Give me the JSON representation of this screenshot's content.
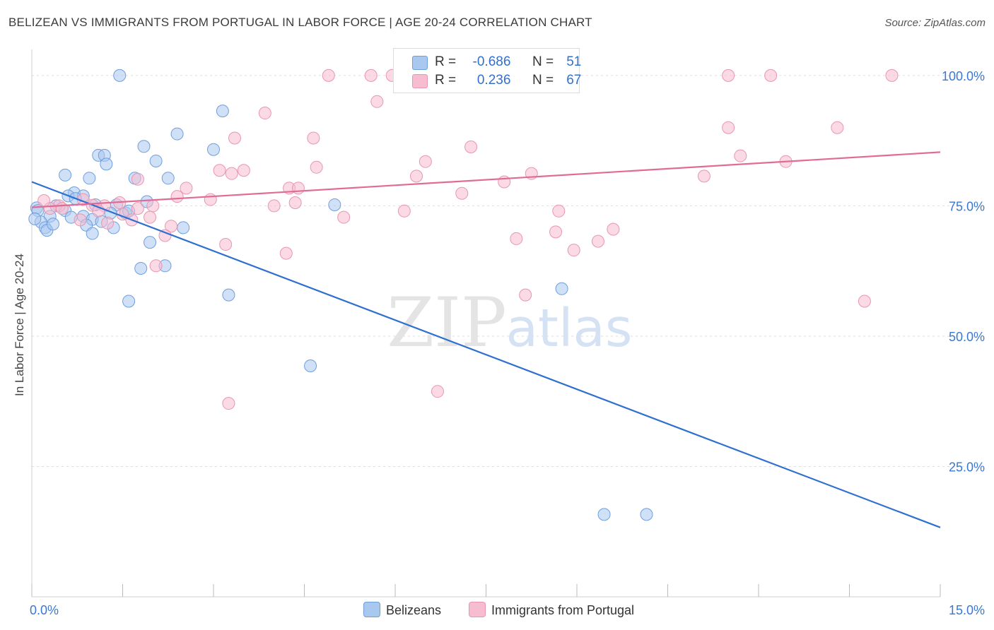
{
  "title": "BELIZEAN VS IMMIGRANTS FROM PORTUGAL IN LABOR FORCE | AGE 20-24 CORRELATION CHART",
  "source": "Source: ZipAtlas.com",
  "watermark": {
    "zip": "ZIP",
    "atlas": "atlas"
  },
  "legend": {
    "r_label": "R =",
    "n_label": "N =",
    "rows": [
      {
        "r": "-0.686",
        "n": "51",
        "color": "#a9c8f0"
      },
      {
        "r": "0.236",
        "n": "67",
        "color": "#f7bcd0"
      }
    ]
  },
  "chart_data": {
    "type": "scatter",
    "ylabel": "In Labor Force | Age 20-24",
    "xlim": [
      0,
      15
    ],
    "ylim": [
      0,
      105
    ],
    "x_tick_labels": [
      {
        "value": 0,
        "label": "0.0%"
      },
      {
        "value": 15,
        "label": "15.0%"
      }
    ],
    "y_tick_labels": [
      {
        "value": 25,
        "label": "25.0%"
      },
      {
        "value": 50,
        "label": "50.0%"
      },
      {
        "value": 75,
        "label": "75.0%"
      },
      {
        "value": 100,
        "label": "100.0%"
      }
    ],
    "grid": true,
    "legend_position": "top-center",
    "series": [
      {
        "name": "Belizeans",
        "color": "#a9c8f0",
        "stroke": "#6f9edc",
        "line_color": "#2f6fd0",
        "trend": {
          "x": [
            0,
            15
          ],
          "y": [
            79.6,
            13.3
          ]
        },
        "points": [
          [
            1.45,
            100.0
          ],
          [
            3.15,
            93.2
          ],
          [
            2.4,
            88.8
          ],
          [
            1.85,
            86.4
          ],
          [
            3.0,
            85.8
          ],
          [
            1.1,
            84.7
          ],
          [
            1.2,
            84.7
          ],
          [
            2.05,
            83.6
          ],
          [
            1.23,
            83.0
          ],
          [
            0.55,
            80.9
          ],
          [
            0.95,
            80.3
          ],
          [
            1.7,
            80.3
          ],
          [
            2.25,
            80.3
          ],
          [
            0.7,
            77.5
          ],
          [
            0.6,
            76.9
          ],
          [
            0.85,
            76.9
          ],
          [
            0.72,
            76.4
          ],
          [
            1.9,
            75.8
          ],
          [
            1.05,
            75.2
          ],
          [
            1.4,
            75.2
          ],
          [
            5.0,
            75.2
          ],
          [
            0.08,
            74.6
          ],
          [
            0.1,
            74.1
          ],
          [
            0.55,
            74.1
          ],
          [
            1.3,
            73.6
          ],
          [
            1.55,
            73.6
          ],
          [
            0.3,
            73.0
          ],
          [
            0.85,
            73.0
          ],
          [
            1.0,
            72.4
          ],
          [
            0.15,
            71.9
          ],
          [
            0.9,
            71.3
          ],
          [
            0.22,
            70.8
          ],
          [
            1.35,
            70.8
          ],
          [
            2.5,
            70.8
          ],
          [
            0.25,
            70.3
          ],
          [
            1.0,
            69.7
          ],
          [
            1.95,
            68.0
          ],
          [
            2.2,
            63.5
          ],
          [
            1.8,
            63.0
          ],
          [
            8.75,
            59.1
          ],
          [
            3.25,
            57.9
          ],
          [
            1.6,
            56.7
          ],
          [
            4.6,
            44.3
          ],
          [
            9.45,
            15.8
          ],
          [
            10.15,
            15.8
          ],
          [
            0.05,
            72.5
          ],
          [
            0.4,
            75.0
          ],
          [
            1.15,
            72.0
          ],
          [
            0.35,
            71.5
          ],
          [
            1.6,
            74.0
          ],
          [
            0.65,
            72.8
          ]
        ]
      },
      {
        "name": "Immigrants from Portugal",
        "color": "#f7bcd0",
        "stroke": "#e896b0",
        "line_color": "#e06c96",
        "trend": {
          "x": [
            0,
            15
          ],
          "y": [
            74.7,
            85.3
          ]
        },
        "points": [
          [
            4.9,
            100.0
          ],
          [
            5.6,
            100.0
          ],
          [
            5.95,
            100.0
          ],
          [
            7.0,
            100.0
          ],
          [
            11.5,
            100.0
          ],
          [
            12.2,
            100.0
          ],
          [
            14.2,
            100.0
          ],
          [
            5.7,
            95.0
          ],
          [
            3.85,
            92.8
          ],
          [
            11.5,
            90.0
          ],
          [
            13.3,
            90.0
          ],
          [
            3.35,
            88.0
          ],
          [
            4.65,
            88.0
          ],
          [
            7.25,
            86.3
          ],
          [
            11.7,
            84.6
          ],
          [
            6.5,
            83.5
          ],
          [
            12.45,
            83.5
          ],
          [
            4.7,
            82.4
          ],
          [
            3.1,
            81.8
          ],
          [
            3.5,
            81.8
          ],
          [
            3.3,
            81.2
          ],
          [
            8.25,
            81.2
          ],
          [
            6.35,
            80.7
          ],
          [
            11.1,
            80.7
          ],
          [
            1.75,
            80.1
          ],
          [
            7.8,
            79.6
          ],
          [
            2.55,
            78.4
          ],
          [
            4.25,
            78.4
          ],
          [
            4.4,
            78.4
          ],
          [
            7.1,
            77.4
          ],
          [
            2.4,
            76.8
          ],
          [
            2.95,
            76.2
          ],
          [
            0.85,
            76.2
          ],
          [
            1.2,
            75.0
          ],
          [
            1.45,
            75.6
          ],
          [
            0.45,
            75.0
          ],
          [
            4.0,
            75.0
          ],
          [
            4.35,
            75.6
          ],
          [
            1.0,
            75.1
          ],
          [
            2.0,
            75.0
          ],
          [
            0.3,
            74.5
          ],
          [
            0.5,
            74.5
          ],
          [
            1.75,
            74.5
          ],
          [
            6.15,
            74.0
          ],
          [
            8.7,
            74.0
          ],
          [
            1.5,
            73.4
          ],
          [
            1.95,
            72.8
          ],
          [
            0.8,
            72.3
          ],
          [
            5.15,
            72.8
          ],
          [
            1.65,
            72.3
          ],
          [
            1.25,
            71.7
          ],
          [
            2.3,
            71.1
          ],
          [
            2.2,
            69.3
          ],
          [
            9.6,
            70.5
          ],
          [
            8.65,
            70.0
          ],
          [
            8.0,
            68.7
          ],
          [
            9.35,
            68.2
          ],
          [
            3.2,
            67.6
          ],
          [
            8.95,
            66.5
          ],
          [
            4.2,
            65.9
          ],
          [
            2.05,
            63.5
          ],
          [
            8.15,
            57.9
          ],
          [
            13.75,
            56.7
          ],
          [
            6.7,
            39.4
          ],
          [
            3.25,
            37.1
          ],
          [
            0.2,
            76.0
          ],
          [
            1.1,
            74.0
          ]
        ]
      }
    ]
  }
}
